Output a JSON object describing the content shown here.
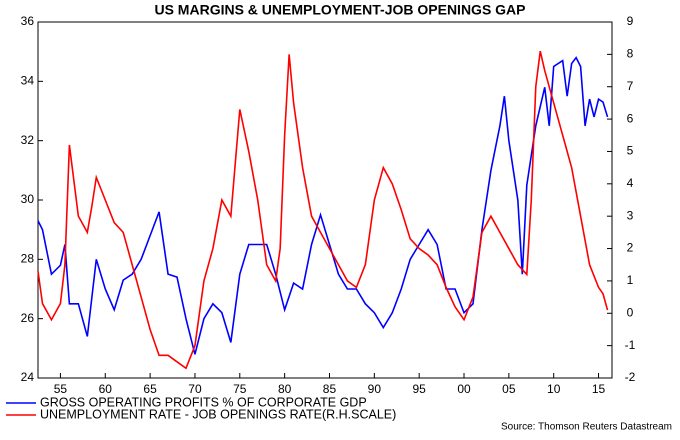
{
  "chart_data": {
    "type": "line",
    "title": "US MARGINS & UNEMPLOYMENT-JOB OPENINGS GAP",
    "source": "Source: Thomson Reuters Datastream",
    "xlim": [
      1952.5,
      2016.5
    ],
    "xticks": [
      {
        "value": 1955,
        "label": "55"
      },
      {
        "value": 1960,
        "label": "60"
      },
      {
        "value": 1965,
        "label": "65"
      },
      {
        "value": 1970,
        "label": "70"
      },
      {
        "value": 1975,
        "label": "75"
      },
      {
        "value": 1980,
        "label": "80"
      },
      {
        "value": 1985,
        "label": "85"
      },
      {
        "value": 1990,
        "label": "90"
      },
      {
        "value": 1995,
        "label": "95"
      },
      {
        "value": 2000,
        "label": "00"
      },
      {
        "value": 2005,
        "label": "05"
      },
      {
        "value": 2010,
        "label": "10"
      },
      {
        "value": 2015,
        "label": "15"
      }
    ],
    "ylim": [
      24,
      36
    ],
    "yticks": [
      24,
      26,
      28,
      30,
      32,
      34,
      36
    ],
    "y2lim": [
      -2,
      9
    ],
    "y2ticks": [
      -2,
      -1,
      0,
      1,
      2,
      3,
      4,
      5,
      6,
      7,
      8,
      9
    ],
    "legend": "bottom-left",
    "series": [
      {
        "name": "GROSS OPERATING PROFITS % OF CORPORATE GDP",
        "color": "#0000ff",
        "x": [
          1952.5,
          1953,
          1954,
          1955,
          1955.5,
          1956,
          1957,
          1958,
          1959,
          1960,
          1961,
          1962,
          1963,
          1964,
          1965,
          1966,
          1967,
          1968,
          1969,
          1970,
          1971,
          1972,
          1973,
          1974,
          1975,
          1976,
          1977,
          1978,
          1979,
          1980,
          1981,
          1982,
          1983,
          1984,
          1985,
          1986,
          1987,
          1988,
          1989,
          1990,
          1991,
          1992,
          1993,
          1994,
          1995,
          1996,
          1997,
          1998,
          1999,
          2000,
          2001,
          2002,
          2003,
          2004,
          2004.5,
          2005,
          2006,
          2006.5,
          2007,
          2008,
          2009,
          2009.5,
          2010,
          2011,
          2011.5,
          2012,
          2012.5,
          2013,
          2013.5,
          2014,
          2014.5,
          2015,
          2015.5,
          2016
        ],
        "values": [
          29.3,
          29,
          27.5,
          27.8,
          28.5,
          26.5,
          26.5,
          25.4,
          28,
          27,
          26.3,
          27.3,
          27.5,
          28,
          28.8,
          29.6,
          27.5,
          27.4,
          26,
          24.8,
          26,
          26.5,
          26.2,
          25.2,
          27.5,
          28.5,
          28.5,
          28.5,
          27.5,
          26.3,
          27.2,
          27,
          28.5,
          29.5,
          28.5,
          27.5,
          27,
          27,
          26.5,
          26.2,
          25.7,
          26.2,
          27,
          28,
          28.5,
          29,
          28.5,
          27,
          27,
          26.2,
          26.5,
          29,
          31,
          32.5,
          33.5,
          32,
          30,
          27.5,
          30.5,
          32.5,
          33.8,
          32.5,
          34.5,
          34.7,
          33.5,
          34.6,
          34.8,
          34.5,
          32.5,
          33.4,
          32.8,
          33.4,
          33.3,
          32.8
        ]
      },
      {
        "name": "UNEMPLOYMENT RATE - JOB OPENINGS RATE(R.H.SCALE)",
        "color": "#ff0000",
        "axis": "y2",
        "x": [
          1952.5,
          1953,
          1954,
          1955,
          1955.5,
          1956,
          1957,
          1958,
          1958.5,
          1959,
          1960,
          1961,
          1962,
          1963,
          1964,
          1965,
          1966,
          1967,
          1968,
          1969,
          1970,
          1971,
          1972,
          1973,
          1974,
          1975,
          1976,
          1977,
          1978,
          1979,
          1979.5,
          1980,
          1980.5,
          1981,
          1982,
          1983,
          1984,
          1985,
          1986,
          1987,
          1988,
          1989,
          1990,
          1991,
          1992,
          1993,
          1994,
          1995,
          1996,
          1997,
          1998,
          1999,
          2000,
          2001,
          2002,
          2003,
          2004,
          2005,
          2006,
          2007,
          2007.5,
          2008,
          2008.5,
          2009,
          2010,
          2011,
          2012,
          2013,
          2014,
          2015,
          2015.5,
          2016
        ],
        "values": [
          1.3,
          0.3,
          -0.2,
          0.3,
          1.5,
          5.2,
          3,
          2.5,
          3.3,
          4.2,
          3.5,
          2.8,
          2.5,
          1.5,
          0.5,
          -0.5,
          -1.3,
          -1.3,
          -1.5,
          -1.7,
          -1,
          1,
          2,
          3.5,
          3,
          6.3,
          5,
          3.5,
          1.5,
          1,
          2,
          5.5,
          8,
          6.5,
          4.5,
          3,
          2.5,
          2,
          1.5,
          1,
          0.8,
          1.5,
          3.5,
          4.5,
          4,
          3.2,
          2.3,
          2,
          1.8,
          1.5,
          0.8,
          0.2,
          -0.2,
          0.5,
          2.5,
          3,
          2.5,
          2,
          1.5,
          1.2,
          3.5,
          7,
          8.1,
          7.5,
          6.5,
          5.5,
          4.5,
          3,
          1.5,
          0.8,
          0.6,
          0.1
        ]
      }
    ]
  }
}
